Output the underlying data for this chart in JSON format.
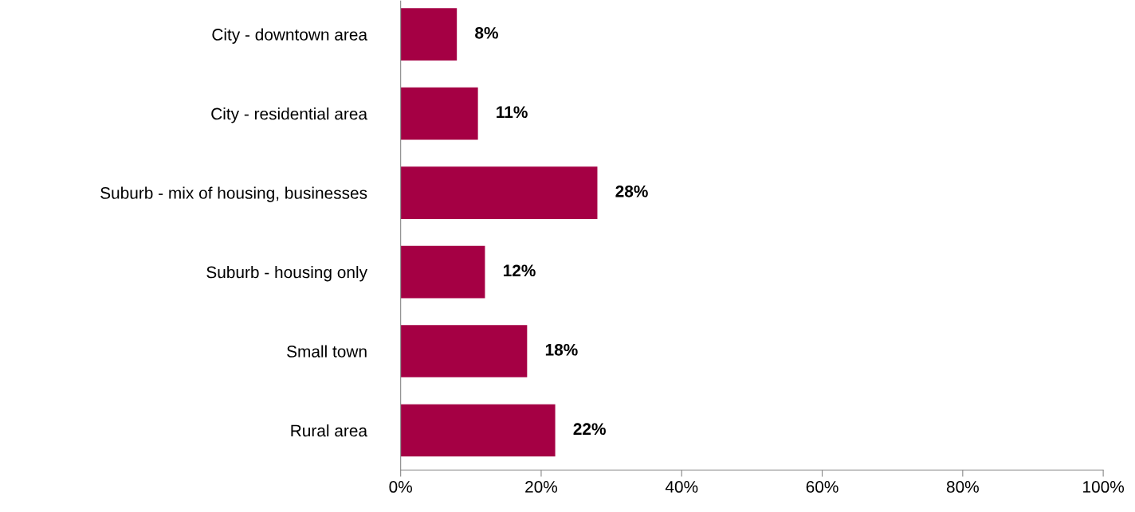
{
  "chart_data": {
    "type": "bar",
    "orientation": "horizontal",
    "categories": [
      "City - downtown area",
      "City - residential area",
      "Suburb - mix of housing, businesses",
      "Suburb - housing only",
      "Small town",
      "Rural area"
    ],
    "values": [
      8,
      11,
      28,
      12,
      18,
      22
    ],
    "color": "#a50044",
    "value_labels": [
      "8%",
      "11%",
      "28%",
      "12%",
      "18%",
      "22%"
    ],
    "xlim": [
      0,
      100
    ],
    "xticks": [
      {
        "value": 0,
        "label": "0%"
      },
      {
        "value": 20,
        "label": "20%"
      },
      {
        "value": 40,
        "label": "40%"
      },
      {
        "value": 60,
        "label": "60%"
      },
      {
        "value": 80,
        "label": "80%"
      },
      {
        "value": 100,
        "label": "100%"
      }
    ],
    "grid": false,
    "legend": false
  }
}
